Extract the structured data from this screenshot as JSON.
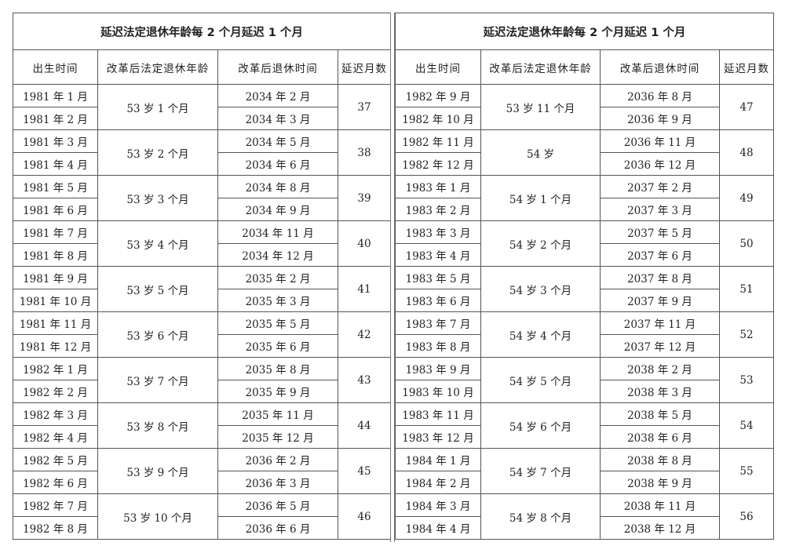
{
  "tables": [
    {
      "title": "延迟法定退休年龄每 2 个月延迟 1 个月",
      "headers": [
        "出生时间",
        "改革后法定退休年龄",
        "改革后退休时间",
        "延迟月数"
      ],
      "groups": [
        {
          "births": [
            "1981 年 1 月",
            "1981 年 2 月"
          ],
          "age": "53 岁 1 个月",
          "times": [
            "2034 年 2 月",
            "2034 年 3 月"
          ],
          "delay": "37"
        },
        {
          "births": [
            "1981 年 3 月",
            "1981 年 4 月"
          ],
          "age": "53 岁 2 个月",
          "times": [
            "2034 年 5 月",
            "2034 年 6 月"
          ],
          "delay": "38"
        },
        {
          "births": [
            "1981 年 5 月",
            "1981 年 6 月"
          ],
          "age": "53 岁 3 个月",
          "times": [
            "2034 年 8 月",
            "2034 年 9 月"
          ],
          "delay": "39"
        },
        {
          "births": [
            "1981 年 7 月",
            "1981 年 8 月"
          ],
          "age": "53 岁 4 个月",
          "times": [
            "2034 年 11 月",
            "2034 年 12 月"
          ],
          "delay": "40"
        },
        {
          "births": [
            "1981 年 9 月",
            "1981 年 10 月"
          ],
          "age": "53 岁 5 个月",
          "times": [
            "2035 年 2 月",
            "2035 年 3 月"
          ],
          "delay": "41"
        },
        {
          "births": [
            "1981 年 11 月",
            "1981 年 12 月"
          ],
          "age": "53 岁 6 个月",
          "times": [
            "2035 年 5 月",
            "2035 年 6 月"
          ],
          "delay": "42"
        },
        {
          "births": [
            "1982 年 1 月",
            "1982 年 2 月"
          ],
          "age": "53 岁 7 个月",
          "times": [
            "2035 年 8 月",
            "2035 年 9 月"
          ],
          "delay": "43"
        },
        {
          "births": [
            "1982 年 3 月",
            "1982 年 4 月"
          ],
          "age": "53 岁 8 个月",
          "times": [
            "2035 年 11 月",
            "2035 年 12 月"
          ],
          "delay": "44"
        },
        {
          "births": [
            "1982 年 5 月",
            "1982 年 6 月"
          ],
          "age": "53 岁 9 个月",
          "times": [
            "2036 年 2 月",
            "2036 年 3 月"
          ],
          "delay": "45"
        },
        {
          "births": [
            "1982 年 7 月",
            "1982 年 8 月"
          ],
          "age": "53 岁 10 个月",
          "times": [
            "2036 年 5 月",
            "2036 年 6 月"
          ],
          "delay": "46"
        }
      ]
    },
    {
      "title": "延迟法定退休年龄每 2 个月延迟 1 个月",
      "headers": [
        "出生时间",
        "改革后法定退休年龄",
        "改革后退休时间",
        "延迟月数"
      ],
      "groups": [
        {
          "births": [
            "1982 年 9 月",
            "1982 年 10 月"
          ],
          "age": "53 岁 11 个月",
          "times": [
            "2036 年 8 月",
            "2036 年 9 月"
          ],
          "delay": "47"
        },
        {
          "births": [
            "1982 年 11 月",
            "1982 年 12 月"
          ],
          "age": "54 岁",
          "times": [
            "2036 年 11 月",
            "2036 年 12 月"
          ],
          "delay": "48"
        },
        {
          "births": [
            "1983 年 1 月",
            "1983 年 2 月"
          ],
          "age": "54 岁 1 个月",
          "times": [
            "2037 年 2 月",
            "2037 年 3 月"
          ],
          "delay": "49"
        },
        {
          "births": [
            "1983 年 3 月",
            "1983 年 4 月"
          ],
          "age": "54 岁 2 个月",
          "times": [
            "2037 年 5 月",
            "2037 年 6 月"
          ],
          "delay": "50"
        },
        {
          "births": [
            "1983 年 5 月",
            "1983 年 6 月"
          ],
          "age": "54 岁 3 个月",
          "times": [
            "2037 年 8 月",
            "2037 年 9 月"
          ],
          "delay": "51"
        },
        {
          "births": [
            "1983 年 7 月",
            "1983 年 8 月"
          ],
          "age": "54 岁 4 个月",
          "times": [
            "2037 年 11 月",
            "2037 年 12 月"
          ],
          "delay": "52"
        },
        {
          "births": [
            "1983 年 9 月",
            "1983 年 10 月"
          ],
          "age": "54 岁 5 个月",
          "times": [
            "2038 年 2 月",
            "2038 年 3 月"
          ],
          "delay": "53"
        },
        {
          "births": [
            "1983 年 11 月",
            "1983 年 12 月"
          ],
          "age": "54 岁 6 个月",
          "times": [
            "2038 年 5 月",
            "2038 年 6 月"
          ],
          "delay": "54"
        },
        {
          "births": [
            "1984 年 1 月",
            "1984 年 2 月"
          ],
          "age": "54 岁 7 个月",
          "times": [
            "2038 年 8 月",
            "2038 年 9 月"
          ],
          "delay": "55"
        },
        {
          "births": [
            "1984 年 3 月",
            "1984 年 4 月"
          ],
          "age": "54 岁 8 个月",
          "times": [
            "2038 年 11 月",
            "2038 年 12 月"
          ],
          "delay": "56"
        }
      ]
    }
  ]
}
